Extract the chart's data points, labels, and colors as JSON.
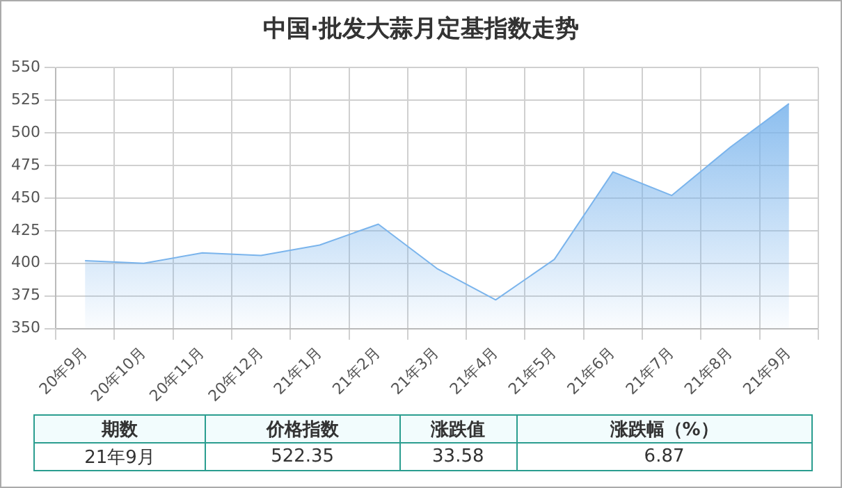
{
  "chart_data": {
    "type": "area",
    "title": "中国·批发大蒜月定基指数走势",
    "categories": [
      "20年9月",
      "20年10月",
      "20年11月",
      "20年12月",
      "21年1月",
      "21年2月",
      "21年3月",
      "21年4月",
      "21年5月",
      "21年6月",
      "21年7月",
      "21年8月",
      "21年9月"
    ],
    "series": [
      {
        "color": "#7ab4ec",
        "values": [
          402,
          400,
          408,
          406,
          414,
          430,
          396,
          372,
          403,
          470,
          452,
          489,
          522.35
        ]
      }
    ],
    "ylim": [
      350,
      550
    ],
    "yticks": [
      350,
      375,
      400,
      425,
      450,
      475,
      500,
      525,
      550
    ],
    "grid": true,
    "legend": false,
    "annotations": [
      "期数",
      "价格指数",
      "涨跌值",
      "涨跌幅（%）",
      "21年9月",
      "522.35",
      "33.58",
      "6.87"
    ]
  }
}
